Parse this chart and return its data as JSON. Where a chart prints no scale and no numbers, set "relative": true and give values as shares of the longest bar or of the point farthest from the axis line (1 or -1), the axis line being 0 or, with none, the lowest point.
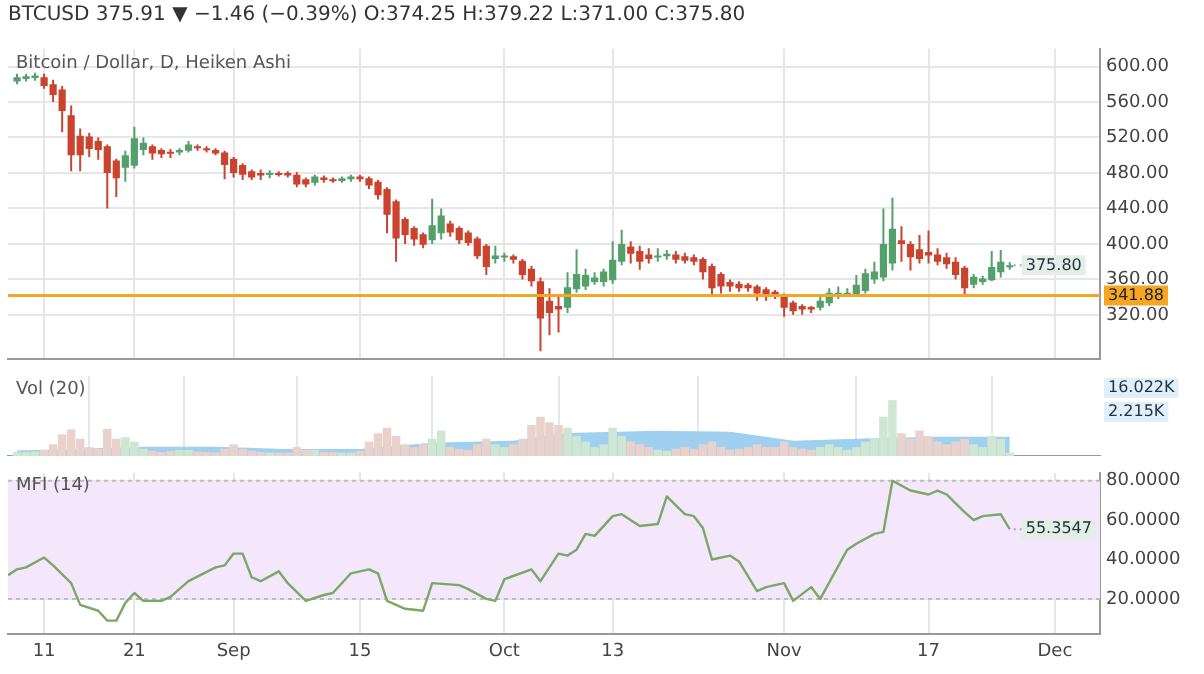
{
  "chart_data": [
    {
      "type": "candlestick",
      "title": "BTCUSD 375.91 ▼ −1.46 (−0.39%) O:374.25 H:379.22 L:371.00 C:375.80",
      "subtitle": "Bitcoin / Dollar, D, Heiken Ashi",
      "x": [
        "--08-08",
        "--08-09",
        "--08-10",
        "--08-11",
        "--08-12",
        "--08-13",
        "--08-14",
        "--08-15",
        "--08-16",
        "--08-17",
        "--08-18",
        "--08-19",
        "--08-20",
        "--08-21",
        "--08-22",
        "--08-23",
        "--08-24",
        "--08-25",
        "--08-26",
        "--08-27",
        "--08-28",
        "--08-29",
        "--08-30",
        "--08-31",
        "--09-01",
        "--09-02",
        "--09-03",
        "--09-04",
        "--09-05",
        "--09-06",
        "--09-07",
        "--09-08",
        "--09-09",
        "--09-10",
        "--09-11",
        "--09-12",
        "--09-13",
        "--09-14",
        "--09-15",
        "--09-16",
        "--09-17",
        "--09-18",
        "--09-19",
        "--09-20",
        "--09-21",
        "--09-22",
        "--09-23",
        "--09-24",
        "--09-25",
        "--09-26",
        "--09-27",
        "--09-28",
        "--09-29",
        "--09-30",
        "--10-01",
        "--10-02",
        "--10-03",
        "--10-04",
        "--10-05",
        "--10-06",
        "--10-07",
        "--10-08",
        "--10-09",
        "--10-10",
        "--10-11",
        "--10-12",
        "--10-13",
        "--10-14",
        "--10-15",
        "--10-16",
        "--10-17",
        "--10-18",
        "--10-19",
        "--10-20",
        "--10-21",
        "--10-22",
        "--10-23",
        "--10-24",
        "--10-25",
        "--10-26",
        "--10-27",
        "--10-28",
        "--10-29",
        "--10-30",
        "--10-31",
        "--11-01",
        "--11-02",
        "--11-03",
        "--11-04",
        "--11-05",
        "--11-06",
        "--11-07",
        "--11-08",
        "--11-09",
        "--11-10",
        "--11-11",
        "--11-12",
        "--11-13",
        "--11-14",
        "--11-15",
        "--11-16",
        "--11-17",
        "--11-18",
        "--11-19",
        "--11-20",
        "--11-21",
        "--11-22",
        "--11-23",
        "--11-24",
        "--11-25",
        "--11-26"
      ],
      "ohlc": [
        [
          583,
          592,
          580,
          588
        ],
        [
          586,
          592,
          583,
          589
        ],
        [
          587,
          593,
          584,
          590
        ],
        [
          588,
          592,
          575,
          578
        ],
        [
          580,
          585,
          560,
          568
        ],
        [
          574,
          578,
          526,
          550
        ],
        [
          545,
          556,
          482,
          500
        ],
        [
          522,
          530,
          482,
          500
        ],
        [
          521,
          525,
          498,
          507
        ],
        [
          516,
          520,
          495,
          506
        ],
        [
          510,
          512,
          440,
          480
        ],
        [
          494,
          496,
          453,
          474
        ],
        [
          486,
          505,
          470,
          500
        ],
        [
          488,
          532,
          485,
          519
        ],
        [
          506,
          520,
          500,
          514
        ],
        [
          510,
          512,
          495,
          502
        ],
        [
          506,
          508,
          497,
          501
        ],
        [
          504,
          507,
          497,
          502
        ],
        [
          503,
          508,
          500,
          506
        ],
        [
          505,
          516,
          503,
          512
        ],
        [
          510,
          512,
          505,
          508
        ],
        [
          508,
          510,
          503,
          506
        ],
        [
          506,
          508,
          500,
          502
        ],
        [
          503,
          505,
          473,
          489
        ],
        [
          496,
          498,
          475,
          480
        ],
        [
          489,
          491,
          472,
          478
        ],
        [
          482,
          484,
          472,
          475
        ],
        [
          480,
          484,
          472,
          477
        ],
        [
          478,
          483,
          474,
          480
        ],
        [
          480,
          482,
          476,
          479
        ],
        [
          480,
          482,
          475,
          477
        ],
        [
          478,
          481,
          464,
          467
        ],
        [
          473,
          475,
          464,
          467
        ],
        [
          469,
          478,
          466,
          476
        ],
        [
          475,
          477,
          469,
          472
        ],
        [
          473,
          475,
          469,
          471
        ],
        [
          471,
          476,
          469,
          474
        ],
        [
          473,
          478,
          470,
          476
        ],
        [
          476,
          478,
          470,
          473
        ],
        [
          474,
          476,
          462,
          466
        ],
        [
          470,
          472,
          450,
          455
        ],
        [
          462,
          464,
          412,
          433
        ],
        [
          448,
          450,
          380,
          406
        ],
        [
          428,
          430,
          400,
          410
        ],
        [
          418,
          420,
          398,
          405
        ],
        [
          411,
          413,
          395,
          399
        ],
        [
          404,
          451,
          400,
          421
        ],
        [
          412,
          440,
          405,
          432
        ],
        [
          423,
          426,
          408,
          413
        ],
        [
          418,
          420,
          400,
          404
        ],
        [
          413,
          415,
          398,
          401
        ],
        [
          406,
          408,
          383,
          386
        ],
        [
          398,
          400,
          365,
          374
        ],
        [
          383,
          398,
          378,
          387
        ],
        [
          385,
          390,
          380,
          387
        ],
        [
          386,
          388,
          378,
          382
        ],
        [
          381,
          383,
          360,
          365
        ],
        [
          372,
          375,
          352,
          358
        ],
        [
          358,
          362,
          279,
          316
        ],
        [
          336,
          350,
          297,
          322
        ],
        [
          330,
          340,
          300,
          326
        ],
        [
          328,
          368,
          322,
          351
        ],
        [
          349,
          394,
          345,
          366
        ],
        [
          352,
          372,
          348,
          365
        ],
        [
          357,
          368,
          354,
          362
        ],
        [
          357,
          372,
          352,
          369
        ],
        [
          359,
          403,
          355,
          382
        ],
        [
          380,
          416,
          376,
          400
        ],
        [
          397,
          403,
          378,
          389
        ],
        [
          392,
          398,
          371,
          380
        ],
        [
          388,
          395,
          378,
          383
        ],
        [
          385,
          395,
          380,
          387
        ],
        [
          386,
          393,
          382,
          389
        ],
        [
          388,
          392,
          378,
          382
        ],
        [
          386,
          390,
          378,
          381
        ],
        [
          385,
          388,
          376,
          380
        ],
        [
          383,
          385,
          360,
          368
        ],
        [
          375,
          378,
          342,
          350
        ],
        [
          366,
          368,
          344,
          352
        ],
        [
          357,
          360,
          346,
          352
        ],
        [
          355,
          358,
          346,
          350
        ],
        [
          354,
          356,
          346,
          350
        ],
        [
          352,
          354,
          336,
          344
        ],
        [
          349,
          351,
          336,
          342
        ],
        [
          346,
          348,
          338,
          342
        ],
        [
          342,
          344,
          318,
          328
        ],
        [
          334,
          336,
          320,
          324
        ],
        [
          330,
          332,
          320,
          326
        ],
        [
          329,
          330,
          322,
          326
        ],
        [
          328,
          340,
          325,
          336
        ],
        [
          333,
          350,
          330,
          345
        ],
        [
          341,
          352,
          338,
          345
        ],
        [
          342,
          350,
          340,
          345
        ],
        [
          343,
          365,
          340,
          354
        ],
        [
          347,
          372,
          344,
          367
        ],
        [
          360,
          380,
          355,
          369
        ],
        [
          362,
          440,
          358,
          400
        ],
        [
          378,
          452,
          370,
          417
        ],
        [
          404,
          420,
          380,
          400
        ],
        [
          400,
          403,
          370,
          385
        ],
        [
          394,
          410,
          378,
          383
        ],
        [
          391,
          415,
          378,
          387
        ],
        [
          388,
          395,
          376,
          380
        ],
        [
          385,
          390,
          372,
          377
        ],
        [
          380,
          385,
          360,
          365
        ],
        [
          373,
          375,
          343,
          350
        ],
        [
          354,
          366,
          350,
          363
        ],
        [
          357,
          364,
          354,
          361
        ],
        [
          359,
          392,
          358,
          374
        ],
        [
          368,
          393,
          362,
          380
        ],
        [
          374.25,
          379.22,
          371.0,
          375.8
        ]
      ],
      "colors": [
        "#53a06a",
        "#53a06a",
        "#53a06a",
        "#c9432f",
        "#c9432f",
        "#c9432f",
        "#c9432f",
        "#c9432f",
        "#c9432f",
        "#c9432f",
        "#c9432f",
        "#c9432f",
        "#53a06a",
        "#53a06a",
        "#53a06a",
        "#c9432f",
        "#c9432f",
        "#c9432f",
        "#53a06a",
        "#53a06a",
        "#c9432f",
        "#c9432f",
        "#c9432f",
        "#c9432f",
        "#c9432f",
        "#c9432f",
        "#c9432f",
        "#c9432f",
        "#53a06a",
        "#c9432f",
        "#c9432f",
        "#c9432f",
        "#c9432f",
        "#53a06a",
        "#c9432f",
        "#c9432f",
        "#53a06a",
        "#53a06a",
        "#c9432f",
        "#c9432f",
        "#c9432f",
        "#c9432f",
        "#c9432f",
        "#c9432f",
        "#c9432f",
        "#c9432f",
        "#53a06a",
        "#53a06a",
        "#c9432f",
        "#c9432f",
        "#c9432f",
        "#c9432f",
        "#c9432f",
        "#53a06a",
        "#53a06a",
        "#c9432f",
        "#c9432f",
        "#c9432f",
        "#c9432f",
        "#c9432f",
        "#c9432f",
        "#53a06a",
        "#53a06a",
        "#53a06a",
        "#53a06a",
        "#53a06a",
        "#53a06a",
        "#53a06a",
        "#c9432f",
        "#c9432f",
        "#c9432f",
        "#53a06a",
        "#53a06a",
        "#c9432f",
        "#c9432f",
        "#c9432f",
        "#c9432f",
        "#c9432f",
        "#c9432f",
        "#c9432f",
        "#c9432f",
        "#c9432f",
        "#c9432f",
        "#c9432f",
        "#c9432f",
        "#c9432f",
        "#c9432f",
        "#c9432f",
        "#c9432f",
        "#53a06a",
        "#53a06a",
        "#53a06a",
        "#53a06a",
        "#53a06a",
        "#53a06a",
        "#53a06a",
        "#53a06a",
        "#53a06a",
        "#c9432f",
        "#c9432f",
        "#c9432f",
        "#c9432f",
        "#c9432f",
        "#c9432f",
        "#c9432f",
        "#c9432f",
        "#53a06a",
        "#53a06a",
        "#53a06a",
        "#53a06a",
        "#53a06a"
      ],
      "xlim": [
        "--08-07",
        "--12-06"
      ],
      "xticks": [
        {
          "value": "--08-11",
          "label": null
        },
        {
          "value": "--08-21",
          "label": null
        },
        {
          "value": "--09-01",
          "label": null
        },
        {
          "value": "--09-15",
          "label": null
        },
        {
          "value": "--10-01",
          "label": null
        },
        {
          "value": "--10-13",
          "label": null
        },
        {
          "value": "--11-01",
          "label": null
        },
        {
          "value": "--11-17",
          "label": null
        },
        {
          "value": "--12-01",
          "label": null
        }
      ],
      "ylim": [
        270,
        620
      ],
      "yticks": [
        {
          "value": 320,
          "label": "320.00"
        },
        {
          "value": 360,
          "label": "360.00"
        },
        {
          "value": 400,
          "label": "400.00"
        },
        {
          "value": 440,
          "label": "440.00"
        },
        {
          "value": 480,
          "label": "480.00"
        },
        {
          "value": 520,
          "label": "520.00"
        },
        {
          "value": 560,
          "label": "560.00"
        },
        {
          "value": 600,
          "label": "600.00"
        }
      ],
      "tick_labels": "y",
      "grid": true,
      "ref_lines": [
        {
          "axis": "y",
          "value": 341.88,
          "label": "341.88",
          "color": "#f5a623"
        }
      ],
      "annotations": [
        {
          "text": "375.80",
          "x": "--11-26",
          "y": 375.8
        }
      ]
    },
    {
      "type": "bar",
      "title": "Vol (20)",
      "relative": true,
      "xlim": [
        "--08-07",
        "--12-06"
      ],
      "xticks": [
        {
          "value": "--08-11",
          "label": null
        },
        {
          "value": "--08-21",
          "label": null
        },
        {
          "value": "--09-01",
          "label": null
        },
        {
          "value": "--09-15",
          "label": null
        },
        {
          "value": "--10-01",
          "label": null
        },
        {
          "value": "--10-13",
          "label": null
        },
        {
          "value": "--11-01",
          "label": null
        },
        {
          "value": "--11-17",
          "label": null
        },
        {
          "value": "--12-01",
          "label": null
        }
      ],
      "tick_labels": false,
      "grid": "x",
      "series": [
        {
          "type": "area",
          "color": "#9fd0f0",
          "x": [
            "--08-08",
            "--08-14",
            "--08-22",
            "--08-30",
            "--09-07",
            "--09-15",
            "--09-23",
            "--10-02",
            "--10-08",
            "--10-18",
            "--10-26",
            "--11-02",
            "--11-10",
            "--11-18",
            "--11-26"
          ],
          "values": [
            0.08,
            0.11,
            0.15,
            0.15,
            0.11,
            0.11,
            0.22,
            0.26,
            0.4,
            0.44,
            0.42,
            0.26,
            0.3,
            0.33,
            0.33
          ]
        },
        {
          "type": "bar",
          "x": [
            "--08-08",
            "--08-09",
            "--08-10",
            "--08-11",
            "--08-12",
            "--08-13",
            "--08-14",
            "--08-15",
            "--08-16",
            "--08-17",
            "--08-18",
            "--08-19",
            "--08-20",
            "--08-21",
            "--08-22",
            "--08-23",
            "--08-24",
            "--08-25",
            "--08-26",
            "--08-27",
            "--08-28",
            "--08-29",
            "--08-30",
            "--08-31",
            "--09-01",
            "--09-02",
            "--09-03",
            "--09-04",
            "--09-05",
            "--09-06",
            "--09-07",
            "--09-08",
            "--09-09",
            "--09-10",
            "--09-11",
            "--09-12",
            "--09-13",
            "--09-14",
            "--09-15",
            "--09-16",
            "--09-17",
            "--09-18",
            "--09-19",
            "--09-20",
            "--09-21",
            "--09-22",
            "--09-23",
            "--09-24",
            "--09-25",
            "--09-26",
            "--09-27",
            "--09-28",
            "--09-29",
            "--09-30",
            "--10-01",
            "--10-02",
            "--10-03",
            "--10-04",
            "--10-05",
            "--10-06",
            "--10-07",
            "--10-08",
            "--10-09",
            "--10-10",
            "--10-11",
            "--10-12",
            "--10-13",
            "--10-14",
            "--10-15",
            "--10-16",
            "--10-17",
            "--10-18",
            "--10-19",
            "--10-20",
            "--10-21",
            "--10-22",
            "--10-23",
            "--10-24",
            "--10-25",
            "--10-26",
            "--10-27",
            "--10-28",
            "--10-29",
            "--10-30",
            "--10-31",
            "--11-01",
            "--11-02",
            "--11-03",
            "--11-04",
            "--11-05",
            "--11-06",
            "--11-07",
            "--11-08",
            "--11-09",
            "--11-10",
            "--11-11",
            "--11-12",
            "--11-13",
            "--11-14",
            "--11-15",
            "--11-16",
            "--11-17",
            "--11-18",
            "--11-19",
            "--11-20",
            "--11-21",
            "--11-22",
            "--11-23",
            "--11-24",
            "--11-25",
            "--11-26"
          ],
          "values": [
            0.06,
            0.06,
            0.07,
            0.1,
            0.2,
            0.38,
            0.47,
            0.3,
            0.15,
            0.12,
            0.48,
            0.3,
            0.33,
            0.25,
            0.12,
            0.08,
            0.06,
            0.08,
            0.1,
            0.1,
            0.07,
            0.06,
            0.05,
            0.12,
            0.2,
            0.12,
            0.08,
            0.06,
            0.05,
            0.05,
            0.05,
            0.15,
            0.1,
            0.1,
            0.06,
            0.06,
            0.05,
            0.05,
            0.08,
            0.25,
            0.4,
            0.5,
            0.35,
            0.2,
            0.15,
            0.2,
            0.3,
            0.45,
            0.15,
            0.12,
            0.1,
            0.2,
            0.3,
            0.2,
            0.15,
            0.2,
            0.3,
            0.55,
            0.7,
            0.6,
            0.55,
            0.5,
            0.35,
            0.25,
            0.15,
            0.2,
            0.5,
            0.35,
            0.25,
            0.2,
            0.15,
            0.1,
            0.08,
            0.12,
            0.15,
            0.12,
            0.2,
            0.25,
            0.15,
            0.1,
            0.12,
            0.15,
            0.2,
            0.15,
            0.15,
            0.25,
            0.15,
            0.12,
            0.1,
            0.15,
            0.2,
            0.15,
            0.1,
            0.15,
            0.25,
            0.3,
            0.7,
            1,
            0.4,
            0.3,
            0.45,
            0.35,
            0.25,
            0.2,
            0.25,
            0.3,
            0.2,
            0.15,
            0.35,
            0.3,
            0.05
          ],
          "colors": [
            "#cfe6d3",
            "#cfe6d3",
            "#cfe6d3",
            "#ead2cc",
            "#ead2cc",
            "#ead2cc",
            "#ead2cc",
            "#ead2cc",
            "#ead2cc",
            "#ead2cc",
            "#ead2cc",
            "#ead2cc",
            "#cfe6d3",
            "#cfe6d3",
            "#cfe6d3",
            "#ead2cc",
            "#ead2cc",
            "#ead2cc",
            "#cfe6d3",
            "#cfe6d3",
            "#ead2cc",
            "#ead2cc",
            "#ead2cc",
            "#ead2cc",
            "#ead2cc",
            "#ead2cc",
            "#ead2cc",
            "#ead2cc",
            "#cfe6d3",
            "#ead2cc",
            "#ead2cc",
            "#ead2cc",
            "#ead2cc",
            "#cfe6d3",
            "#ead2cc",
            "#ead2cc",
            "#cfe6d3",
            "#cfe6d3",
            "#ead2cc",
            "#ead2cc",
            "#ead2cc",
            "#ead2cc",
            "#ead2cc",
            "#ead2cc",
            "#ead2cc",
            "#ead2cc",
            "#cfe6d3",
            "#cfe6d3",
            "#ead2cc",
            "#ead2cc",
            "#ead2cc",
            "#ead2cc",
            "#ead2cc",
            "#cfe6d3",
            "#cfe6d3",
            "#ead2cc",
            "#ead2cc",
            "#ead2cc",
            "#ead2cc",
            "#ead2cc",
            "#ead2cc",
            "#cfe6d3",
            "#cfe6d3",
            "#cfe6d3",
            "#cfe6d3",
            "#cfe6d3",
            "#cfe6d3",
            "#cfe6d3",
            "#ead2cc",
            "#ead2cc",
            "#ead2cc",
            "#cfe6d3",
            "#cfe6d3",
            "#ead2cc",
            "#ead2cc",
            "#ead2cc",
            "#ead2cc",
            "#ead2cc",
            "#ead2cc",
            "#ead2cc",
            "#ead2cc",
            "#ead2cc",
            "#ead2cc",
            "#ead2cc",
            "#ead2cc",
            "#ead2cc",
            "#ead2cc",
            "#ead2cc",
            "#ead2cc",
            "#cfe6d3",
            "#cfe6d3",
            "#cfe6d3",
            "#cfe6d3",
            "#cfe6d3",
            "#cfe6d3",
            "#cfe6d3",
            "#cfe6d3",
            "#cfe6d3",
            "#ead2cc",
            "#ead2cc",
            "#ead2cc",
            "#ead2cc",
            "#ead2cc",
            "#ead2cc",
            "#ead2cc",
            "#ead2cc",
            "#cfe6d3",
            "#cfe6d3",
            "#cfe6d3",
            "#cfe6d3",
            "#cfe6d3"
          ]
        }
      ],
      "annotations": [
        "16.022K",
        "2.215K"
      ]
    },
    {
      "type": "line",
      "title": "MFI (14)",
      "marker": "none",
      "line_style": "solid",
      "x": [
        "--08-07",
        "--08-08",
        "--08-09",
        "--08-11",
        "--08-12",
        "--08-14",
        "--08-15",
        "--08-17",
        "--08-18",
        "--08-19",
        "--08-20",
        "--08-21",
        "--08-22",
        "--08-24",
        "--08-25",
        "--08-27",
        "--08-30",
        "--08-31",
        "--09-01",
        "--09-02",
        "--09-03",
        "--09-04",
        "--09-06",
        "--09-07",
        "--09-09",
        "--09-11",
        "--09-12",
        "--09-14",
        "--09-16",
        "--09-17",
        "--09-18",
        "--09-20",
        "--09-22",
        "--09-23",
        "--09-26",
        "--09-27",
        "--09-29",
        "--09-30",
        "--10-01",
        "--10-04",
        "--10-05",
        "--10-07",
        "--10-08",
        "--10-09",
        "--10-10",
        "--10-11",
        "--10-13",
        "--10-14",
        "--10-16",
        "--10-18",
        "--10-19",
        "--10-21",
        "--10-22",
        "--10-23",
        "--10-24",
        "--10-26",
        "--10-27",
        "--10-29",
        "--10-30",
        "--11-01",
        "--11-02",
        "--11-04",
        "--11-05",
        "--11-08",
        "--11-09",
        "--11-11",
        "--11-12",
        "--11-13",
        "--11-15",
        "--11-17",
        "--11-18",
        "--11-19",
        "--11-21",
        "--11-22",
        "--11-23",
        "--11-25",
        "--11-26"
      ],
      "series": [
        {
          "color": "#7aa866",
          "values": [
            32,
            35,
            36,
            41,
            37,
            28,
            17,
            14,
            9,
            9,
            18,
            23,
            19,
            19,
            21,
            29,
            36,
            37,
            43,
            43,
            31,
            29,
            34,
            28,
            19,
            22,
            23,
            33,
            35,
            33,
            19,
            15,
            14,
            28,
            27,
            25,
            20,
            19,
            30,
            35,
            29,
            43,
            42,
            45,
            53,
            52,
            62,
            63,
            57,
            58,
            72,
            63,
            62,
            56,
            40,
            42,
            39,
            24,
            26,
            28,
            19,
            26,
            20,
            45,
            48,
            53,
            54,
            80,
            75,
            73,
            75,
            73,
            64,
            60,
            62,
            63,
            55.3547
          ]
        }
      ],
      "xlim": [
        "--08-07",
        "--12-06"
      ],
      "xticks": [
        {
          "value": "--08-11",
          "label": "11"
        },
        {
          "value": "--08-21",
          "label": "21"
        },
        {
          "value": "--09-01",
          "label": "Sep"
        },
        {
          "value": "--09-15",
          "label": "15"
        },
        {
          "value": "--10-01",
          "label": "Oct"
        },
        {
          "value": "--10-13",
          "label": "13"
        },
        {
          "value": "--11-01",
          "label": "Nov"
        },
        {
          "value": "--11-17",
          "label": "17"
        },
        {
          "value": "--12-01",
          "label": "Dec"
        }
      ],
      "ylim": [
        2,
        84
      ],
      "yticks": [
        {
          "value": 20,
          "label": "20.0000"
        },
        {
          "value": 40,
          "label": "40.0000"
        },
        {
          "value": 60,
          "label": "60.0000"
        },
        {
          "value": 80,
          "label": "80.0000"
        }
      ],
      "grid": true,
      "bands": [
        {
          "axis": "y",
          "from": 20,
          "to": 80,
          "color": "#f4e6fb"
        }
      ],
      "annotations": [
        {
          "text": "55.3547",
          "x": "--11-26",
          "y": 55.3547
        }
      ]
    }
  ]
}
